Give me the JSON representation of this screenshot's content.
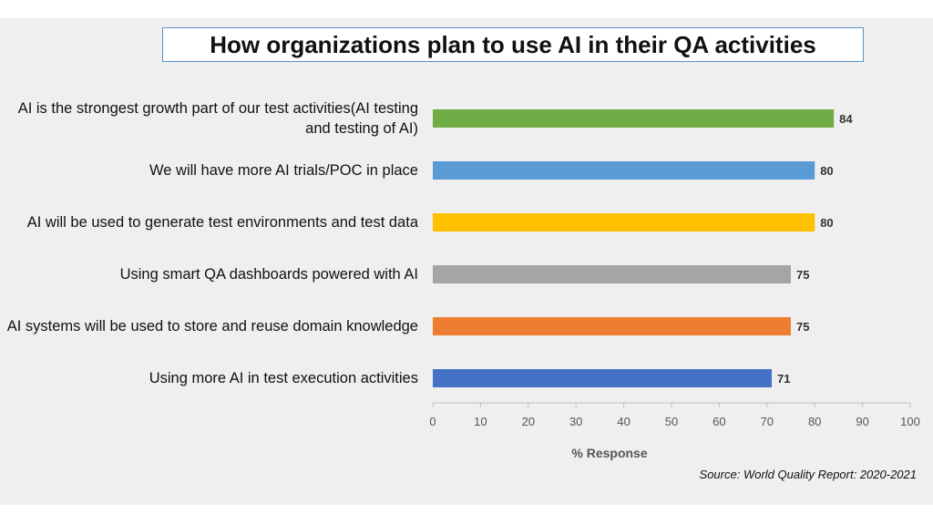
{
  "chart_data": {
    "type": "bar",
    "orientation": "horizontal",
    "title": "How organizations plan to use AI in their QA activities",
    "xlabel": "% Response",
    "ylabel": "",
    "xlim": [
      0,
      100
    ],
    "x_ticks": [
      0,
      10,
      20,
      30,
      40,
      50,
      60,
      70,
      80,
      90,
      100
    ],
    "grid": false,
    "legend": "none",
    "categories": [
      "AI is the strongest growth part of our test activities(AI testing and testing of AI)",
      "We will have more AI trials/POC in place",
      "AI will be used to generate test environments and test data",
      "Using smart QA dashboards powered with AI",
      "AI systems will be used to store and reuse domain knowledge",
      "Using more AI in test execution activities"
    ],
    "values": [
      84,
      80,
      80,
      75,
      75,
      71
    ],
    "bar_colors": [
      "#70ad47",
      "#5b9bd5",
      "#ffc000",
      "#a5a5a5",
      "#ed7d31",
      "#4472c4"
    ],
    "data_labels": [
      "84",
      "80",
      "80",
      "75",
      "75",
      "71"
    ]
  },
  "source": "Source: World Quality Report: 2020-2021"
}
